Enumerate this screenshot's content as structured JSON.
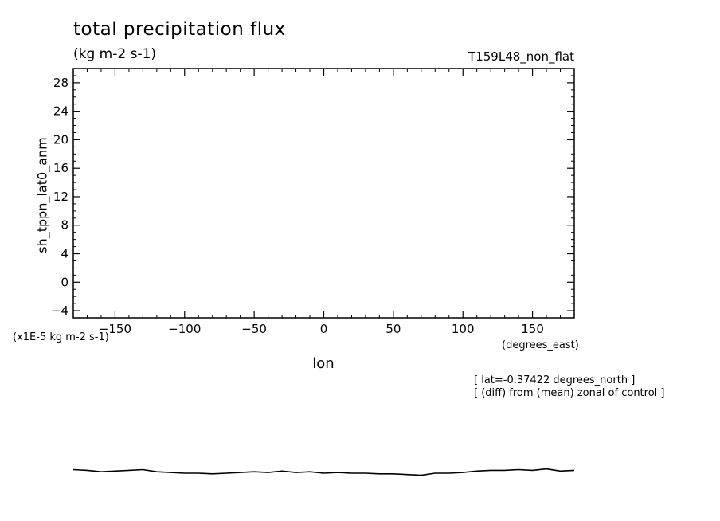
{
  "chart_data": {
    "type": "line",
    "title": "total precipitation flux",
    "units": "(kg m-2 s-1)",
    "experiment": "T159L48_non_flat",
    "ylabel": "sh_tppn_lat0_anm",
    "xlabel": "lon",
    "xunits": "(degrees_east)",
    "yscale_label": "(x1E-5 kg m-2 s-1)",
    "annotations": [
      "[ lat=-0.37422 degrees_north ]",
      "[ (diff) from (mean) zonal of control ]"
    ],
    "xlim": [
      -180,
      180
    ],
    "ylim": [
      -5,
      30
    ],
    "xticks": [
      -150,
      -100,
      -50,
      0,
      50,
      100,
      150
    ],
    "yticks": [
      -4,
      0,
      4,
      8,
      12,
      16,
      20,
      24,
      28
    ],
    "series": [
      {
        "x": [
          -180,
          -170,
          -160,
          -150,
          -140,
          -130,
          -120,
          -110,
          -100,
          -90,
          -80,
          -70,
          -60,
          -50,
          -40,
          -30,
          -20,
          -10,
          0,
          10,
          20,
          30,
          40,
          50,
          60,
          70,
          80,
          90,
          100,
          110,
          120,
          130,
          140,
          150,
          160,
          170,
          180
        ],
        "y": [
          -26.3,
          -26.4,
          -26.6,
          -26.5,
          -26.4,
          -26.3,
          -26.6,
          -26.7,
          -26.8,
          -26.8,
          -26.9,
          -26.8,
          -26.7,
          -26.6,
          -26.7,
          -26.5,
          -26.7,
          -26.6,
          -26.8,
          -26.7,
          -26.8,
          -26.8,
          -26.9,
          -26.9,
          -27.0,
          -27.1,
          -26.8,
          -26.8,
          -26.7,
          -26.5,
          -26.4,
          -26.4,
          -26.3,
          -26.4,
          -26.2,
          -26.5,
          -26.4
        ]
      }
    ]
  }
}
